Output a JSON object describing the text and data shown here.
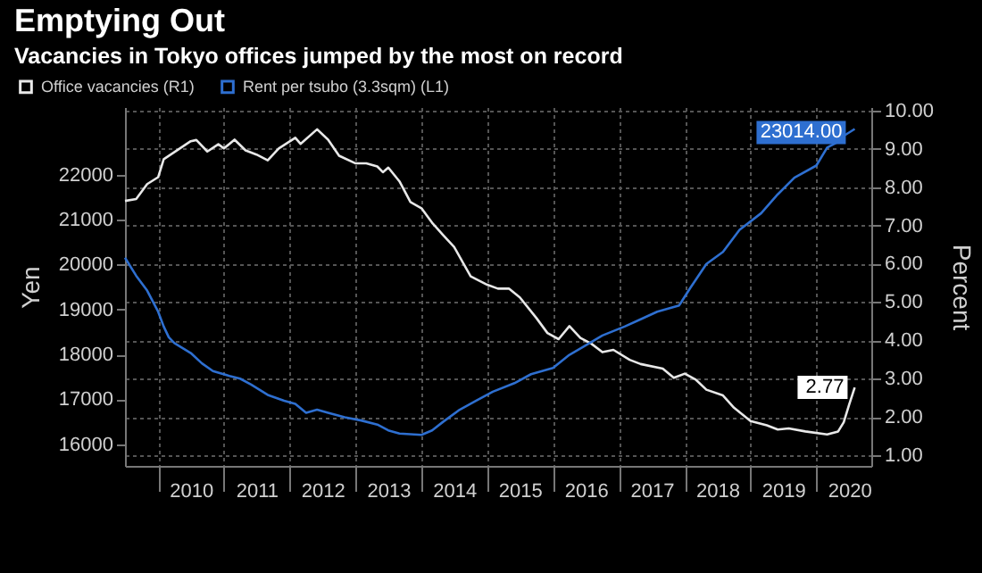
{
  "chart_data": {
    "type": "line",
    "title": "Emptying Out",
    "subtitle": "Vacancies in Tokyo offices jumped by the most on record",
    "xlabel": null,
    "ylabel": "Yen",
    "y2label": "Percent",
    "xlim": [
      "2009-07",
      "2020-11"
    ],
    "xticks": [
      {
        "value": "2010-01",
        "label": null
      },
      {
        "value": "2010-07",
        "label": "2010"
      },
      {
        "value": "2011-01",
        "label": null
      },
      {
        "value": "2011-07",
        "label": "2011"
      },
      {
        "value": "2012-01",
        "label": null
      },
      {
        "value": "2012-07",
        "label": "2012"
      },
      {
        "value": "2013-01",
        "label": null
      },
      {
        "value": "2013-07",
        "label": "2013"
      },
      {
        "value": "2014-01",
        "label": null
      },
      {
        "value": "2014-07",
        "label": "2014"
      },
      {
        "value": "2015-01",
        "label": null
      },
      {
        "value": "2015-07",
        "label": "2015"
      },
      {
        "value": "2016-01",
        "label": null
      },
      {
        "value": "2016-07",
        "label": "2016"
      },
      {
        "value": "2017-01",
        "label": null
      },
      {
        "value": "2017-07",
        "label": "2017"
      },
      {
        "value": "2018-01",
        "label": null
      },
      {
        "value": "2018-07",
        "label": "2018"
      },
      {
        "value": "2019-01",
        "label": null
      },
      {
        "value": "2019-07",
        "label": "2019"
      },
      {
        "value": "2020-01",
        "label": null
      },
      {
        "value": "2020-07",
        "label": "2020"
      }
    ],
    "ylim": [
      15520,
      23500
    ],
    "yticks": [
      16000,
      17000,
      18000,
      19000,
      20000,
      21000,
      22000
    ],
    "y2lim": [
      0.72,
      10.09
    ],
    "y2ticks": [
      {
        "value": 1,
        "label": "1.00"
      },
      {
        "value": 2,
        "label": "2.00"
      },
      {
        "value": 3,
        "label": "3.00"
      },
      {
        "value": 4,
        "label": "4.00"
      },
      {
        "value": 5,
        "label": "5.00"
      },
      {
        "value": 6,
        "label": "6.00"
      },
      {
        "value": 7,
        "label": "7.00"
      },
      {
        "value": 8,
        "label": "8.00"
      },
      {
        "value": 9,
        "label": "9.00"
      },
      {
        "value": 10,
        "label": "10.00"
      }
    ],
    "grid": true,
    "legend": "top left",
    "line_style": "solid",
    "marker": "none",
    "series": [
      {
        "name": "Office vacancies (R1)",
        "color": "#e8e8e8",
        "axis": "y2",
        "x": [
          "2009-07",
          "2009-09",
          "2009-11",
          "2010-01",
          "2010-02",
          "2010-05",
          "2010-07",
          "2010-08",
          "2010-10",
          "2010-12",
          "2011-01",
          "2011-03",
          "2011-05",
          "2011-07",
          "2011-09",
          "2011-11",
          "2012-02",
          "2012-03",
          "2012-06",
          "2012-08",
          "2012-10",
          "2013-01",
          "2013-03",
          "2013-05",
          "2013-06",
          "2013-07",
          "2013-09",
          "2013-11",
          "2014-01",
          "2014-03",
          "2014-05",
          "2014-07",
          "2014-10",
          "2015-01",
          "2015-03",
          "2015-05",
          "2015-07",
          "2015-10",
          "2015-12",
          "2016-02",
          "2016-04",
          "2016-06",
          "2016-08",
          "2016-10",
          "2016-12",
          "2017-03",
          "2017-05",
          "2017-09",
          "2017-11",
          "2018-01",
          "2018-03",
          "2018-05",
          "2018-08",
          "2018-10",
          "2019-01",
          "2019-04",
          "2019-06",
          "2019-08",
          "2019-11",
          "2020-03",
          "2020-05",
          "2020-06",
          "2020-07",
          "2020-08"
        ],
        "values": [
          7.64,
          7.69,
          8.08,
          8.26,
          8.73,
          9.01,
          9.2,
          9.23,
          8.93,
          9.12,
          9.01,
          9.24,
          8.96,
          8.85,
          8.7,
          9.01,
          9.29,
          9.13,
          9.51,
          9.24,
          8.82,
          8.62,
          8.62,
          8.54,
          8.39,
          8.51,
          8.15,
          7.61,
          7.45,
          7.07,
          6.75,
          6.44,
          5.67,
          5.45,
          5.35,
          5.35,
          5.12,
          4.58,
          4.19,
          4.03,
          4.37,
          4.06,
          3.91,
          3.69,
          3.75,
          3.49,
          3.38,
          3.26,
          3.02,
          3.13,
          2.98,
          2.71,
          2.56,
          2.24,
          1.89,
          1.78,
          1.67,
          1.7,
          1.62,
          1.54,
          1.62,
          1.86,
          2.32,
          2.77
        ],
        "value_labels": [
          null,
          null,
          null,
          null,
          null,
          null,
          null,
          null,
          null,
          null,
          null,
          null,
          null,
          null,
          null,
          null,
          null,
          null,
          null,
          null,
          null,
          null,
          null,
          null,
          null,
          null,
          null,
          null,
          null,
          null,
          null,
          null,
          null,
          null,
          null,
          null,
          null,
          null,
          null,
          null,
          null,
          null,
          null,
          null,
          null,
          null,
          null,
          null,
          null,
          null,
          null,
          null,
          null,
          null,
          null,
          null,
          null,
          null,
          null,
          null,
          null,
          null,
          null,
          "2.77"
        ]
      },
      {
        "name": "Rent per tsubo (3.3sqm) (L1)",
        "color": "#2e6fd0",
        "axis": "y",
        "x": [
          "2009-07",
          "2009-09",
          "2009-11",
          "2010-01",
          "2010-02",
          "2010-03",
          "2010-04",
          "2010-07",
          "2010-09",
          "2010-11",
          "2011-02",
          "2011-04",
          "2011-06",
          "2011-09",
          "2011-12",
          "2012-02",
          "2012-04",
          "2012-06",
          "2012-08",
          "2012-11",
          "2013-02",
          "2013-05",
          "2013-07",
          "2013-09",
          "2014-01",
          "2014-03",
          "2014-05",
          "2014-08",
          "2014-11",
          "2015-02",
          "2015-06",
          "2015-09",
          "2016-01",
          "2016-04",
          "2016-07",
          "2016-10",
          "2017-02",
          "2017-05",
          "2017-08",
          "2017-12",
          "2018-02",
          "2018-05",
          "2018-08",
          "2018-11",
          "2019-03",
          "2019-06",
          "2019-09",
          "2020-01",
          "2020-03",
          "2020-05",
          "2020-06",
          "2020-08"
        ],
        "values": [
          20150,
          19750,
          19420,
          18950,
          18620,
          18380,
          18250,
          18030,
          17800,
          17630,
          17520,
          17460,
          17330,
          17100,
          16970,
          16900,
          16700,
          16770,
          16700,
          16600,
          16530,
          16440,
          16310,
          16240,
          16210,
          16310,
          16500,
          16770,
          16970,
          17170,
          17360,
          17560,
          17700,
          17990,
          18200,
          18420,
          18620,
          18780,
          18950,
          19090,
          19480,
          20010,
          20280,
          20770,
          21140,
          21560,
          21930,
          22200,
          22600,
          22730,
          22860,
          23014
        ],
        "value_labels": [
          null,
          null,
          null,
          null,
          null,
          null,
          null,
          null,
          null,
          null,
          null,
          null,
          null,
          null,
          null,
          null,
          null,
          null,
          null,
          null,
          null,
          null,
          null,
          null,
          null,
          null,
          null,
          null,
          null,
          null,
          null,
          null,
          null,
          null,
          null,
          null,
          null,
          null,
          null,
          null,
          null,
          null,
          null,
          null,
          null,
          null,
          null,
          null,
          null,
          null,
          null,
          "23014.00"
        ]
      }
    ]
  }
}
